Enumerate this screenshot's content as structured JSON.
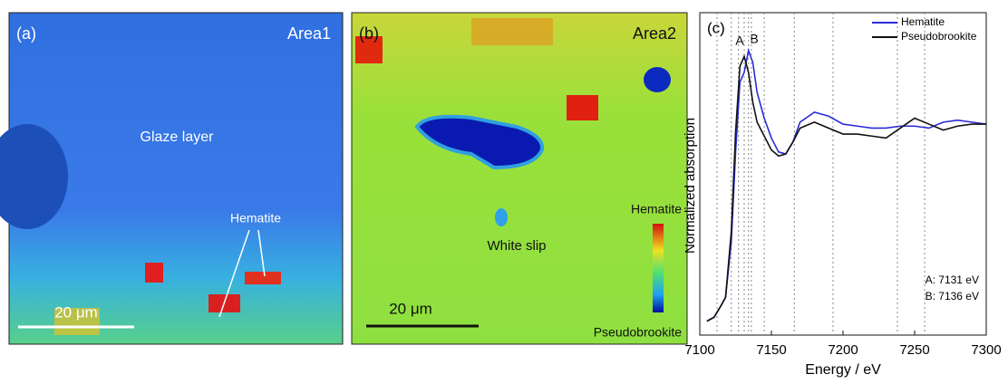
{
  "panels": [
    {
      "label": "(a)",
      "area": "Area1",
      "region": "Glaze layer",
      "phase": "Hematite",
      "scale": "20 μm"
    },
    {
      "label": "(b)",
      "area": "Area2",
      "region": "White slip",
      "scale": "20 μm",
      "colorbar_top": "Hematite",
      "colorbar_bottom": "Pseudobrookite"
    }
  ],
  "chart_data": {
    "type": "line",
    "panel_label": "(c)",
    "x_label": "Energy / eV",
    "y_label": "Normalized absorption",
    "x": [
      7105,
      7110,
      7115,
      7118,
      7122,
      7125,
      7128,
      7131,
      7134,
      7137,
      7140,
      7145,
      7150,
      7155,
      7160,
      7165,
      7170,
      7180,
      7190,
      7200,
      7210,
      7220,
      7230,
      7240,
      7250,
      7260,
      7270,
      7280,
      7290,
      7300
    ],
    "series": [
      {
        "name": "Hematite",
        "color": "#2b2bd6",
        "values": [
          0.0,
          0.02,
          0.08,
          0.12,
          0.4,
          0.85,
          1.2,
          1.25,
          1.36,
          1.3,
          1.15,
          1.02,
          0.92,
          0.85,
          0.84,
          0.9,
          1.0,
          1.05,
          1.03,
          0.99,
          0.98,
          0.97,
          0.97,
          0.98,
          0.98,
          0.97,
          1.0,
          1.01,
          1.0,
          0.99
        ]
      },
      {
        "name": "Pseudobrookite",
        "color": "#111111",
        "values": [
          0.0,
          0.02,
          0.08,
          0.12,
          0.45,
          0.95,
          1.28,
          1.33,
          1.25,
          1.1,
          1.0,
          0.93,
          0.86,
          0.83,
          0.84,
          0.9,
          0.97,
          1.0,
          0.97,
          0.94,
          0.94,
          0.93,
          0.92,
          0.97,
          1.02,
          0.99,
          0.96,
          0.98,
          0.99,
          0.99
        ]
      }
    ],
    "reference_lines": [
      7112,
      7122,
      7127,
      7131,
      7134,
      7136,
      7145,
      7166,
      7193,
      7238,
      7257
    ],
    "annotations": [
      "A",
      "B",
      "A: 7131 eV",
      "B: 7136 eV"
    ],
    "xlim": [
      7100,
      7300
    ],
    "xticks": [
      7100,
      7150,
      7200,
      7250,
      7300
    ],
    "ylim": [
      -0.07,
      1.55
    ],
    "legend": "upper right"
  }
}
